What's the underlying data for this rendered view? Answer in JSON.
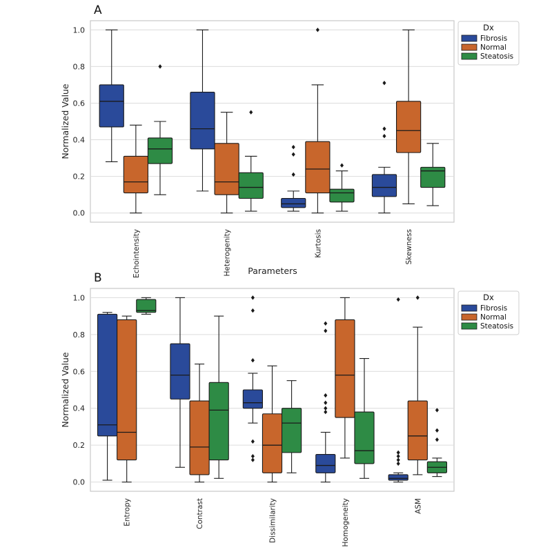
{
  "colors": {
    "Fibrosis": "#2a4a9a",
    "Normal": "#c8662c",
    "Steatosis": "#2e8b45",
    "grid": "#dcdcdc",
    "frame": "#c8c8c8",
    "ink": "#1a1a1a"
  },
  "chart_data": [
    {
      "type": "boxplot",
      "panel_label": "A",
      "title": "",
      "xlabel": "Parameters",
      "ylabel": "Normalized Value",
      "ylim": [
        -0.05,
        1.05
      ],
      "yticks": [
        0.0,
        0.2,
        0.4,
        0.6,
        0.8,
        1.0
      ],
      "ytick_labels": [
        "0.0",
        "0.2",
        "0.4",
        "0.6",
        "0.8",
        "1.0"
      ],
      "grid": true,
      "legend": {
        "title": "Dx",
        "position": "top-right",
        "entries": [
          "Fibrosis",
          "Normal",
          "Steatosis"
        ]
      },
      "categories": [
        "Echointensity",
        "Heterogenity",
        "Kurtosis",
        "Skewness"
      ],
      "series": [
        {
          "name": "Fibrosis",
          "boxes": [
            {
              "whisker_low": 0.28,
              "q1": 0.47,
              "median": 0.61,
              "q3": 0.7,
              "whisker_high": 1.0,
              "outliers": []
            },
            {
              "whisker_low": 0.12,
              "q1": 0.35,
              "median": 0.46,
              "q3": 0.66,
              "whisker_high": 1.0,
              "outliers": []
            },
            {
              "whisker_low": 0.01,
              "q1": 0.03,
              "median": 0.05,
              "q3": 0.08,
              "whisker_high": 0.12,
              "outliers": [
                0.21,
                0.32,
                0.36
              ]
            },
            {
              "whisker_low": 0.0,
              "q1": 0.09,
              "median": 0.14,
              "q3": 0.21,
              "whisker_high": 0.25,
              "outliers": [
                0.42,
                0.46,
                0.71
              ]
            }
          ]
        },
        {
          "name": "Normal",
          "boxes": [
            {
              "whisker_low": 0.0,
              "q1": 0.11,
              "median": 0.17,
              "q3": 0.31,
              "whisker_high": 0.48,
              "outliers": []
            },
            {
              "whisker_low": 0.0,
              "q1": 0.1,
              "median": 0.17,
              "q3": 0.38,
              "whisker_high": 0.55,
              "outliers": []
            },
            {
              "whisker_low": 0.0,
              "q1": 0.11,
              "median": 0.24,
              "q3": 0.39,
              "whisker_high": 0.7,
              "outliers": [
                1.0
              ]
            },
            {
              "whisker_low": 0.05,
              "q1": 0.33,
              "median": 0.45,
              "q3": 0.61,
              "whisker_high": 1.0,
              "outliers": []
            }
          ]
        },
        {
          "name": "Steatosis",
          "boxes": [
            {
              "whisker_low": 0.1,
              "q1": 0.27,
              "median": 0.35,
              "q3": 0.41,
              "whisker_high": 0.5,
              "outliers": [
                0.8
              ]
            },
            {
              "whisker_low": 0.01,
              "q1": 0.08,
              "median": 0.14,
              "q3": 0.22,
              "whisker_high": 0.31,
              "outliers": [
                0.55
              ]
            },
            {
              "whisker_low": 0.01,
              "q1": 0.06,
              "median": 0.11,
              "q3": 0.13,
              "whisker_high": 0.23,
              "outliers": [
                0.26
              ]
            },
            {
              "whisker_low": 0.04,
              "q1": 0.14,
              "median": 0.23,
              "q3": 0.25,
              "whisker_high": 0.38,
              "outliers": []
            }
          ]
        }
      ]
    },
    {
      "type": "boxplot",
      "panel_label": "B",
      "title": "",
      "xlabel": "",
      "ylabel": "Normalized Value",
      "ylim": [
        -0.05,
        1.05
      ],
      "yticks": [
        0.0,
        0.2,
        0.4,
        0.6,
        0.8,
        1.0
      ],
      "ytick_labels": [
        "0.0",
        "0.2",
        "0.4",
        "0.6",
        "0.8",
        "1.0"
      ],
      "grid": true,
      "legend": {
        "title": "Dx",
        "position": "top-right",
        "entries": [
          "Fibrosis",
          "Normal",
          "Steatosis"
        ]
      },
      "categories": [
        "Entropy",
        "Contrast",
        "Dissimilarity",
        "Homogeneity",
        "ASM"
      ],
      "series": [
        {
          "name": "Fibrosis",
          "boxes": [
            {
              "whisker_low": 0.01,
              "q1": 0.25,
              "median": 0.31,
              "q3": 0.91,
              "whisker_high": 0.92,
              "outliers": []
            },
            {
              "whisker_low": 0.08,
              "q1": 0.45,
              "median": 0.58,
              "q3": 0.75,
              "whisker_high": 1.0,
              "outliers": []
            },
            {
              "whisker_low": 0.32,
              "q1": 0.4,
              "median": 0.43,
              "q3": 0.5,
              "whisker_high": 0.59,
              "outliers": [
                0.12,
                0.14,
                0.22,
                0.66,
                0.93,
                1.0
              ]
            },
            {
              "whisker_low": 0.0,
              "q1": 0.05,
              "median": 0.09,
              "q3": 0.15,
              "whisker_high": 0.27,
              "outliers": [
                0.38,
                0.4,
                0.43,
                0.47,
                0.82,
                0.86
              ]
            },
            {
              "whisker_low": 0.0,
              "q1": 0.01,
              "median": 0.02,
              "q3": 0.04,
              "whisker_high": 0.05,
              "outliers": [
                0.1,
                0.12,
                0.14,
                0.16,
                0.99
              ]
            }
          ]
        },
        {
          "name": "Normal",
          "boxes": [
            {
              "whisker_low": 0.0,
              "q1": 0.12,
              "median": 0.27,
              "q3": 0.88,
              "whisker_high": 0.9,
              "outliers": []
            },
            {
              "whisker_low": 0.0,
              "q1": 0.04,
              "median": 0.19,
              "q3": 0.44,
              "whisker_high": 0.64,
              "outliers": []
            },
            {
              "whisker_low": 0.0,
              "q1": 0.05,
              "median": 0.2,
              "q3": 0.37,
              "whisker_high": 0.63,
              "outliers": []
            },
            {
              "whisker_low": 0.13,
              "q1": 0.35,
              "median": 0.58,
              "q3": 0.88,
              "whisker_high": 1.0,
              "outliers": []
            },
            {
              "whisker_low": 0.04,
              "q1": 0.12,
              "median": 0.25,
              "q3": 0.44,
              "whisker_high": 0.84,
              "outliers": [
                1.0
              ]
            }
          ]
        },
        {
          "name": "Steatosis",
          "boxes": [
            {
              "whisker_low": 0.91,
              "q1": 0.92,
              "median": 0.93,
              "q3": 0.99,
              "whisker_high": 1.0,
              "outliers": []
            },
            {
              "whisker_low": 0.02,
              "q1": 0.12,
              "median": 0.39,
              "q3": 0.54,
              "whisker_high": 0.9,
              "outliers": []
            },
            {
              "whisker_low": 0.05,
              "q1": 0.16,
              "median": 0.32,
              "q3": 0.4,
              "whisker_high": 0.55,
              "outliers": []
            },
            {
              "whisker_low": 0.02,
              "q1": 0.1,
              "median": 0.17,
              "q3": 0.38,
              "whisker_high": 0.67,
              "outliers": []
            },
            {
              "whisker_low": 0.03,
              "q1": 0.05,
              "median": 0.08,
              "q3": 0.11,
              "whisker_high": 0.13,
              "outliers": [
                0.23,
                0.28,
                0.39
              ]
            }
          ]
        }
      ]
    }
  ]
}
